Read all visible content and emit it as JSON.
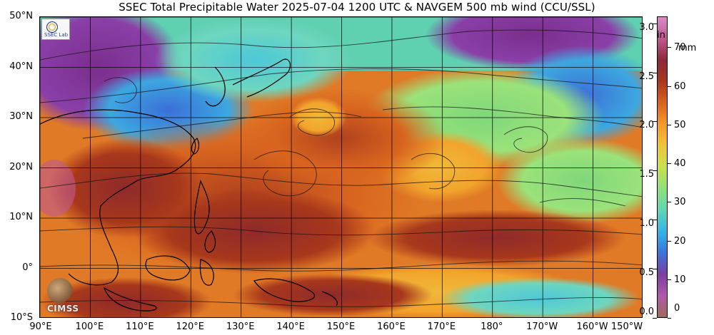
{
  "title": "SSEC Total Precipitable Water  2025-07-04 1200 UTC & NAVGEM 500 mb wind (CCU/SSL)",
  "map": {
    "lat_labels": [
      "50°N",
      "40°N",
      "30°N",
      "20°N",
      "10°N",
      "0°",
      "10°S"
    ],
    "lon_labels": [
      "90°E",
      "100°E",
      "110°E",
      "120°E",
      "130°E",
      "140°E",
      "150°E",
      "160°E",
      "170°E",
      "180°",
      "170°W",
      "160°W",
      "150°W"
    ],
    "lat_range": [
      -10,
      50
    ],
    "lon_range_east": [
      90,
      210
    ]
  },
  "colorbar": {
    "inch_ticks": [
      "3.0",
      "2.5",
      "2.0",
      "1.5",
      "1.0",
      "0.5",
      "0.0"
    ],
    "mm_ticks": [
      "70",
      "60",
      "50",
      "40",
      "30",
      "20",
      "10",
      "0"
    ],
    "inch_unit": "in",
    "mm_unit": "mm",
    "colors": [
      "#a06a5c",
      "#b05aa8",
      "#7a3fa0",
      "#3b74d8",
      "#35b5e6",
      "#62d6b4",
      "#8ee07a",
      "#c8e050",
      "#f0c43a",
      "#f39a2a",
      "#d8631e",
      "#a8381c",
      "#8a2a3a",
      "#c05a90",
      "#d88ac8"
    ]
  },
  "logos": {
    "ssec": "SSEC Lab",
    "cimss": "CIMSS"
  }
}
